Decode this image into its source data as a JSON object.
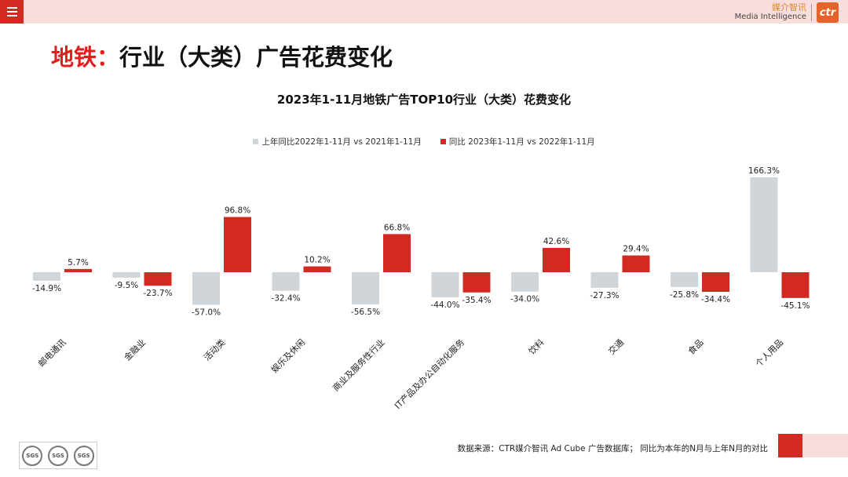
{
  "header": {
    "menu_icon": "hamburger-menu-icon",
    "brand_cn": "媒介智讯",
    "brand_en": "Media Intelligence",
    "brand_logo": "ctr",
    "accent_color": "#d22a22"
  },
  "page": {
    "title_accent": "地铁：",
    "title_main": "行业（大类）广告花费变化"
  },
  "chart_data": {
    "type": "bar",
    "title": "2023年1-11月地铁广告TOP10行业（大类）花费变化",
    "legend_position": "top",
    "categories": [
      "邮电通讯",
      "金融业",
      "活动类",
      "娱乐及休闲",
      "商业及服务性行业",
      "IT产品及办公自动化服务",
      "饮料",
      "交通",
      "食品",
      "个人用品"
    ],
    "series": [
      {
        "name": "上年同比2022年1-11月  vs  2021年1-11月",
        "color": "#cfd5d8",
        "values": [
          -14.9,
          -9.5,
          -57.0,
          -32.4,
          -56.5,
          -44.0,
          -34.0,
          -27.3,
          -25.8,
          166.3
        ],
        "labels": [
          "-14.9%",
          "-9.5%",
          "-57.0%",
          "-32.4%",
          "-56.5%",
          "-44.0%",
          "-34.0%",
          "-27.3%",
          "-25.8%",
          "166.3%"
        ]
      },
      {
        "name": "同比 2023年1-11月  vs  2022年1-11月",
        "color": "#d22a22",
        "values": [
          5.7,
          -23.7,
          96.8,
          10.2,
          66.8,
          -35.4,
          42.6,
          29.4,
          -34.4,
          -45.1
        ],
        "labels": [
          "5.7%",
          "-23.7%",
          "96.8%",
          "10.2%",
          "66.8%",
          "-35.4%",
          "42.6%",
          "29.4%",
          "-34.4%",
          "-45.1%"
        ]
      }
    ]
  },
  "footer": {
    "seals": [
      "SGS",
      "SGS",
      "SGS"
    ],
    "source_text": "数据来源：CTR媒介智讯 Ad Cube 广告数据库；  同比为本年的N月与上年N月的对比"
  }
}
